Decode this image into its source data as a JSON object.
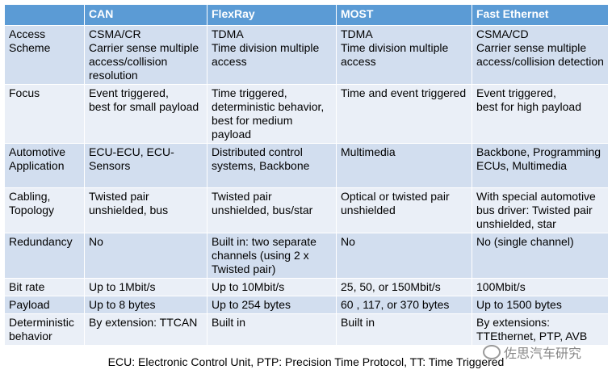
{
  "table": {
    "headers": [
      "",
      "CAN",
      "FlexRay",
      "MOST",
      "Fast Ethernet"
    ],
    "rows": [
      [
        "Access\nScheme",
        "CSMA/CR\nCarrier sense multiple access/collision resolution",
        "TDMA\nTime division multiple access",
        "TDMA\nTime division multiple access",
        "CSMA/CD\nCarrier sense multiple access/collision detection"
      ],
      [
        "Focus",
        "Event triggered,\nbest for small payload",
        "Time triggered,\ndeterministic behavior,\nbest for medium payload",
        "Time and event triggered",
        "Event triggered,\nbest for high payload"
      ],
      [
        "Automotive\nApplication",
        "ECU-ECU, ECU-Sensors",
        "Distributed control systems, Backbone",
        "Multimedia",
        "Backbone, Programming ECUs, Multimedia"
      ],
      [
        "Cabling,\nTopology",
        "Twisted pair\nunshielded, bus",
        "Twisted pair unshielded, bus/star",
        "Optical or twisted pair unshielded",
        "With special automotive bus driver: Twisted pair unshielded, star"
      ],
      [
        "Redundancy",
        "No",
        "Built in: two separate channels (using 2 x Twisted pair)",
        "No",
        "No (single channel)"
      ],
      [
        "Bit rate",
        "Up to 1Mbit/s",
        "Up to 10Mbit/s",
        "25, 50, or 150Mbit/s",
        "100Mbit/s"
      ],
      [
        "Payload",
        "Up to 8 bytes",
        "Up to 254 bytes",
        "60 , 117, or 370 bytes",
        "Up to 1500 bytes"
      ],
      [
        "Deterministic\nbehavior",
        "By extension: TTCAN",
        "Built in",
        "Built in",
        "By extensions:\nTTEthernet, PTP, AVB"
      ]
    ]
  },
  "footnote": "ECU: Electronic Control Unit, PTP: Precision Time Protocol, TT: Time Triggered",
  "watermark": "佐思汽车研究"
}
